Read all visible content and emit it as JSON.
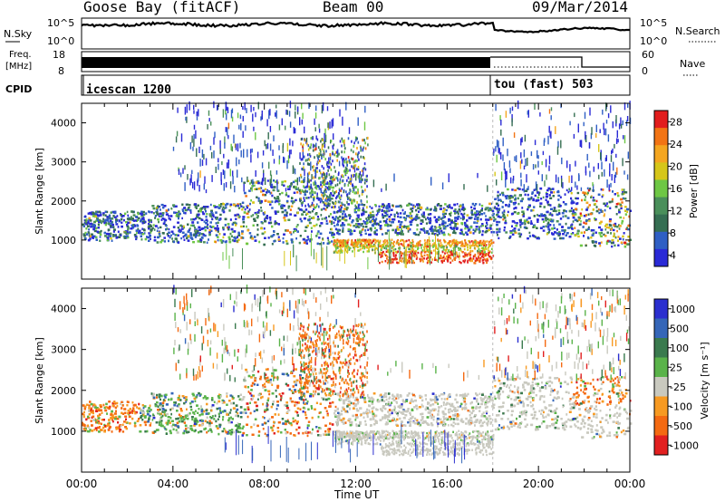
{
  "header": {
    "station": "Goose Bay (fitACF)",
    "beam": "Beam 00",
    "date": "09/Mar/2014"
  },
  "noise_panel": {
    "left_label": "N.Sky",
    "right_label": "N.Search",
    "left_ticks": [
      "10^5",
      "10^0"
    ],
    "right_ticks": [
      "10^5",
      "10^0"
    ]
  },
  "freq_panel": {
    "left_label_1": "Freq.",
    "left_label_2": "[MHz]",
    "right_label": "Nave",
    "left_ticks": [
      "18",
      "8"
    ],
    "right_ticks": [
      "60",
      "0"
    ]
  },
  "cpid_panel": {
    "label": "CPID",
    "programs": [
      "icescan 1200",
      "tou (fast) 503"
    ],
    "program_start_hours": [
      0,
      18
    ]
  },
  "time_axis": {
    "label": "Time UT",
    "ticks": [
      "00:00",
      "04:00",
      "08:00",
      "12:00",
      "16:00",
      "20:00",
      "00:00"
    ]
  },
  "colors": {
    "frame": "#000000",
    "power_scale": [
      "#2a2ad6",
      "#2f5fc4",
      "#356e52",
      "#4a8f5a",
      "#6ec744",
      "#d6c619",
      "#f4a620",
      "#f27414",
      "#e21d1d"
    ],
    "velocity_scale": [
      "#2b2fcf",
      "#3566b8",
      "#3a7a4e",
      "#5ab34a",
      "#c9c9bf",
      "#f79a22",
      "#f46a12",
      "#e22020"
    ]
  },
  "chart_data": [
    {
      "type": "heatmap",
      "name": "power",
      "xlabel": "Time UT",
      "ylabel": "Slant Range [km]",
      "xlim": [
        0,
        24
      ],
      "ylim": [
        0,
        4500
      ],
      "y_ticks": [
        "1000",
        "2000",
        "3000",
        "4000"
      ],
      "colorbar_label": "Power [dB]",
      "colorbar_ticks": [
        "28",
        "24",
        "20",
        "16",
        "12",
        "8",
        "4"
      ],
      "colorbar_range": [
        0,
        32
      ]
    },
    {
      "type": "heatmap",
      "name": "velocity",
      "xlabel": "Time UT",
      "ylabel": "Slant Range [km]",
      "xlim": [
        0,
        24
      ],
      "ylim": [
        0,
        4500
      ],
      "y_ticks": [
        "1000",
        "2000",
        "3000",
        "4000"
      ],
      "colorbar_label": "Velocity [m s⁻¹]",
      "colorbar_ticks": [
        "1000",
        "500",
        "100",
        "25",
        "-25",
        "-100",
        "-500",
        "-1000"
      ]
    }
  ]
}
